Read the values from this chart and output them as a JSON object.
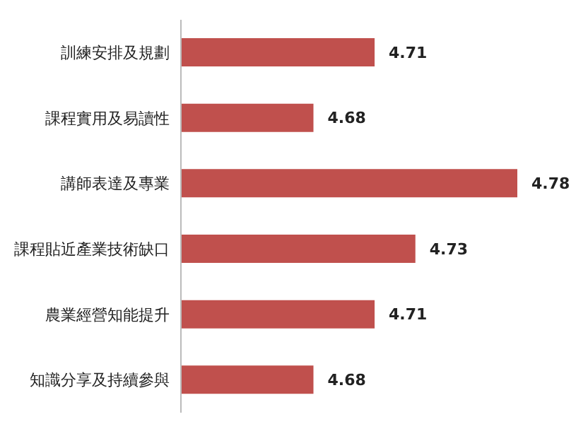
{
  "chart_data": {
    "type": "bar",
    "orientation": "horizontal",
    "categories": [
      "訓練安排及規劃",
      "課程實用及易讀性",
      "講師表達及專業",
      "課程貼近產業技術缺口",
      "農業經營知能提升",
      "知識分享及持續參與"
    ],
    "values": [
      4.71,
      4.68,
      4.78,
      4.73,
      4.71,
      4.68
    ],
    "color": "#c0504d",
    "xlim": [
      4.615,
      4.78
    ],
    "data_labels": true,
    "tick_labels": "y",
    "grid": false
  }
}
